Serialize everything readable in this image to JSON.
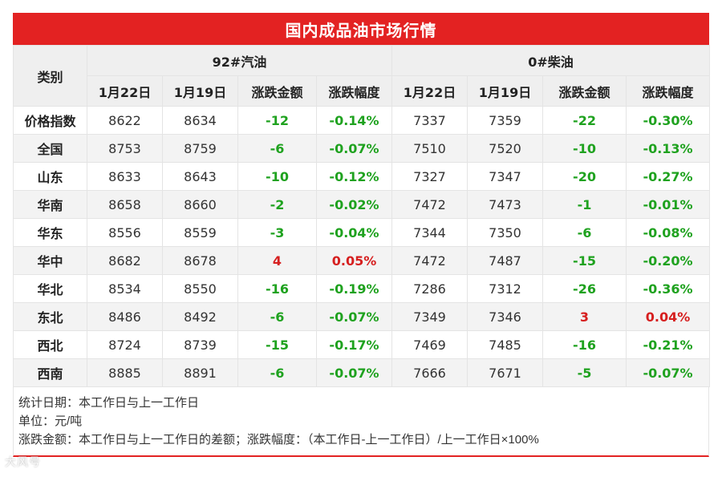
{
  "title": "国内成品油市场行情",
  "header": {
    "category": "类别",
    "gasoline": "92#汽油",
    "diesel": "0#柴油",
    "cols": [
      "1月22日",
      "1月19日",
      "涨跌金额",
      "涨跌幅度",
      "1月22日",
      "1月19日",
      "涨跌金额",
      "涨跌幅度"
    ]
  },
  "rows": [
    {
      "name": "价格指数",
      "g1": "8622",
      "g2": "8634",
      "gc": "-12",
      "gp": "-0.14%",
      "d1": "7337",
      "d2": "7359",
      "dc": "-22",
      "dp": "-0.30%"
    },
    {
      "name": "全国",
      "g1": "8753",
      "g2": "8759",
      "gc": "-6",
      "gp": "-0.07%",
      "d1": "7510",
      "d2": "7520",
      "dc": "-10",
      "dp": "-0.13%"
    },
    {
      "name": "山东",
      "g1": "8633",
      "g2": "8643",
      "gc": "-10",
      "gp": "-0.12%",
      "d1": "7327",
      "d2": "7347",
      "dc": "-20",
      "dp": "-0.27%"
    },
    {
      "name": "华南",
      "g1": "8658",
      "g2": "8660",
      "gc": "-2",
      "gp": "-0.02%",
      "d1": "7472",
      "d2": "7473",
      "dc": "-1",
      "dp": "-0.01%"
    },
    {
      "name": "华东",
      "g1": "8556",
      "g2": "8559",
      "gc": "-3",
      "gp": "-0.04%",
      "d1": "7344",
      "d2": "7350",
      "dc": "-6",
      "dp": "-0.08%"
    },
    {
      "name": "华中",
      "g1": "8682",
      "g2": "8678",
      "gc": "4",
      "gp": "0.05%",
      "d1": "7472",
      "d2": "7487",
      "dc": "-15",
      "dp": "-0.20%"
    },
    {
      "name": "华北",
      "g1": "8534",
      "g2": "8550",
      "gc": "-16",
      "gp": "-0.19%",
      "d1": "7286",
      "d2": "7312",
      "dc": "-26",
      "dp": "-0.36%"
    },
    {
      "name": "东北",
      "g1": "8486",
      "g2": "8492",
      "gc": "-6",
      "gp": "-0.07%",
      "d1": "7349",
      "d2": "7346",
      "dc": "3",
      "dp": "0.04%"
    },
    {
      "name": "西北",
      "g1": "8724",
      "g2": "8739",
      "gc": "-15",
      "gp": "-0.17%",
      "d1": "7469",
      "d2": "7485",
      "dc": "-16",
      "dp": "-0.21%"
    },
    {
      "name": "西南",
      "g1": "8885",
      "g2": "8891",
      "gc": "-6",
      "gp": "-0.07%",
      "d1": "7666",
      "d2": "7671",
      "dc": "-5",
      "dp": "-0.07%"
    }
  ],
  "notes": {
    "date": "统计日期：本工作日与上一工作日",
    "unit": "单位：元/吨",
    "definition": "涨跌金额：本工作日与上一工作日的差额；涨跌幅度：（本工作日-上一工作日）/上一工作日×100%"
  },
  "watermark": "大风号",
  "colors": {
    "title_bg": "#e32222",
    "down": "#1fa21f",
    "up": "#d61f1f",
    "header_bg": "#efefef"
  }
}
